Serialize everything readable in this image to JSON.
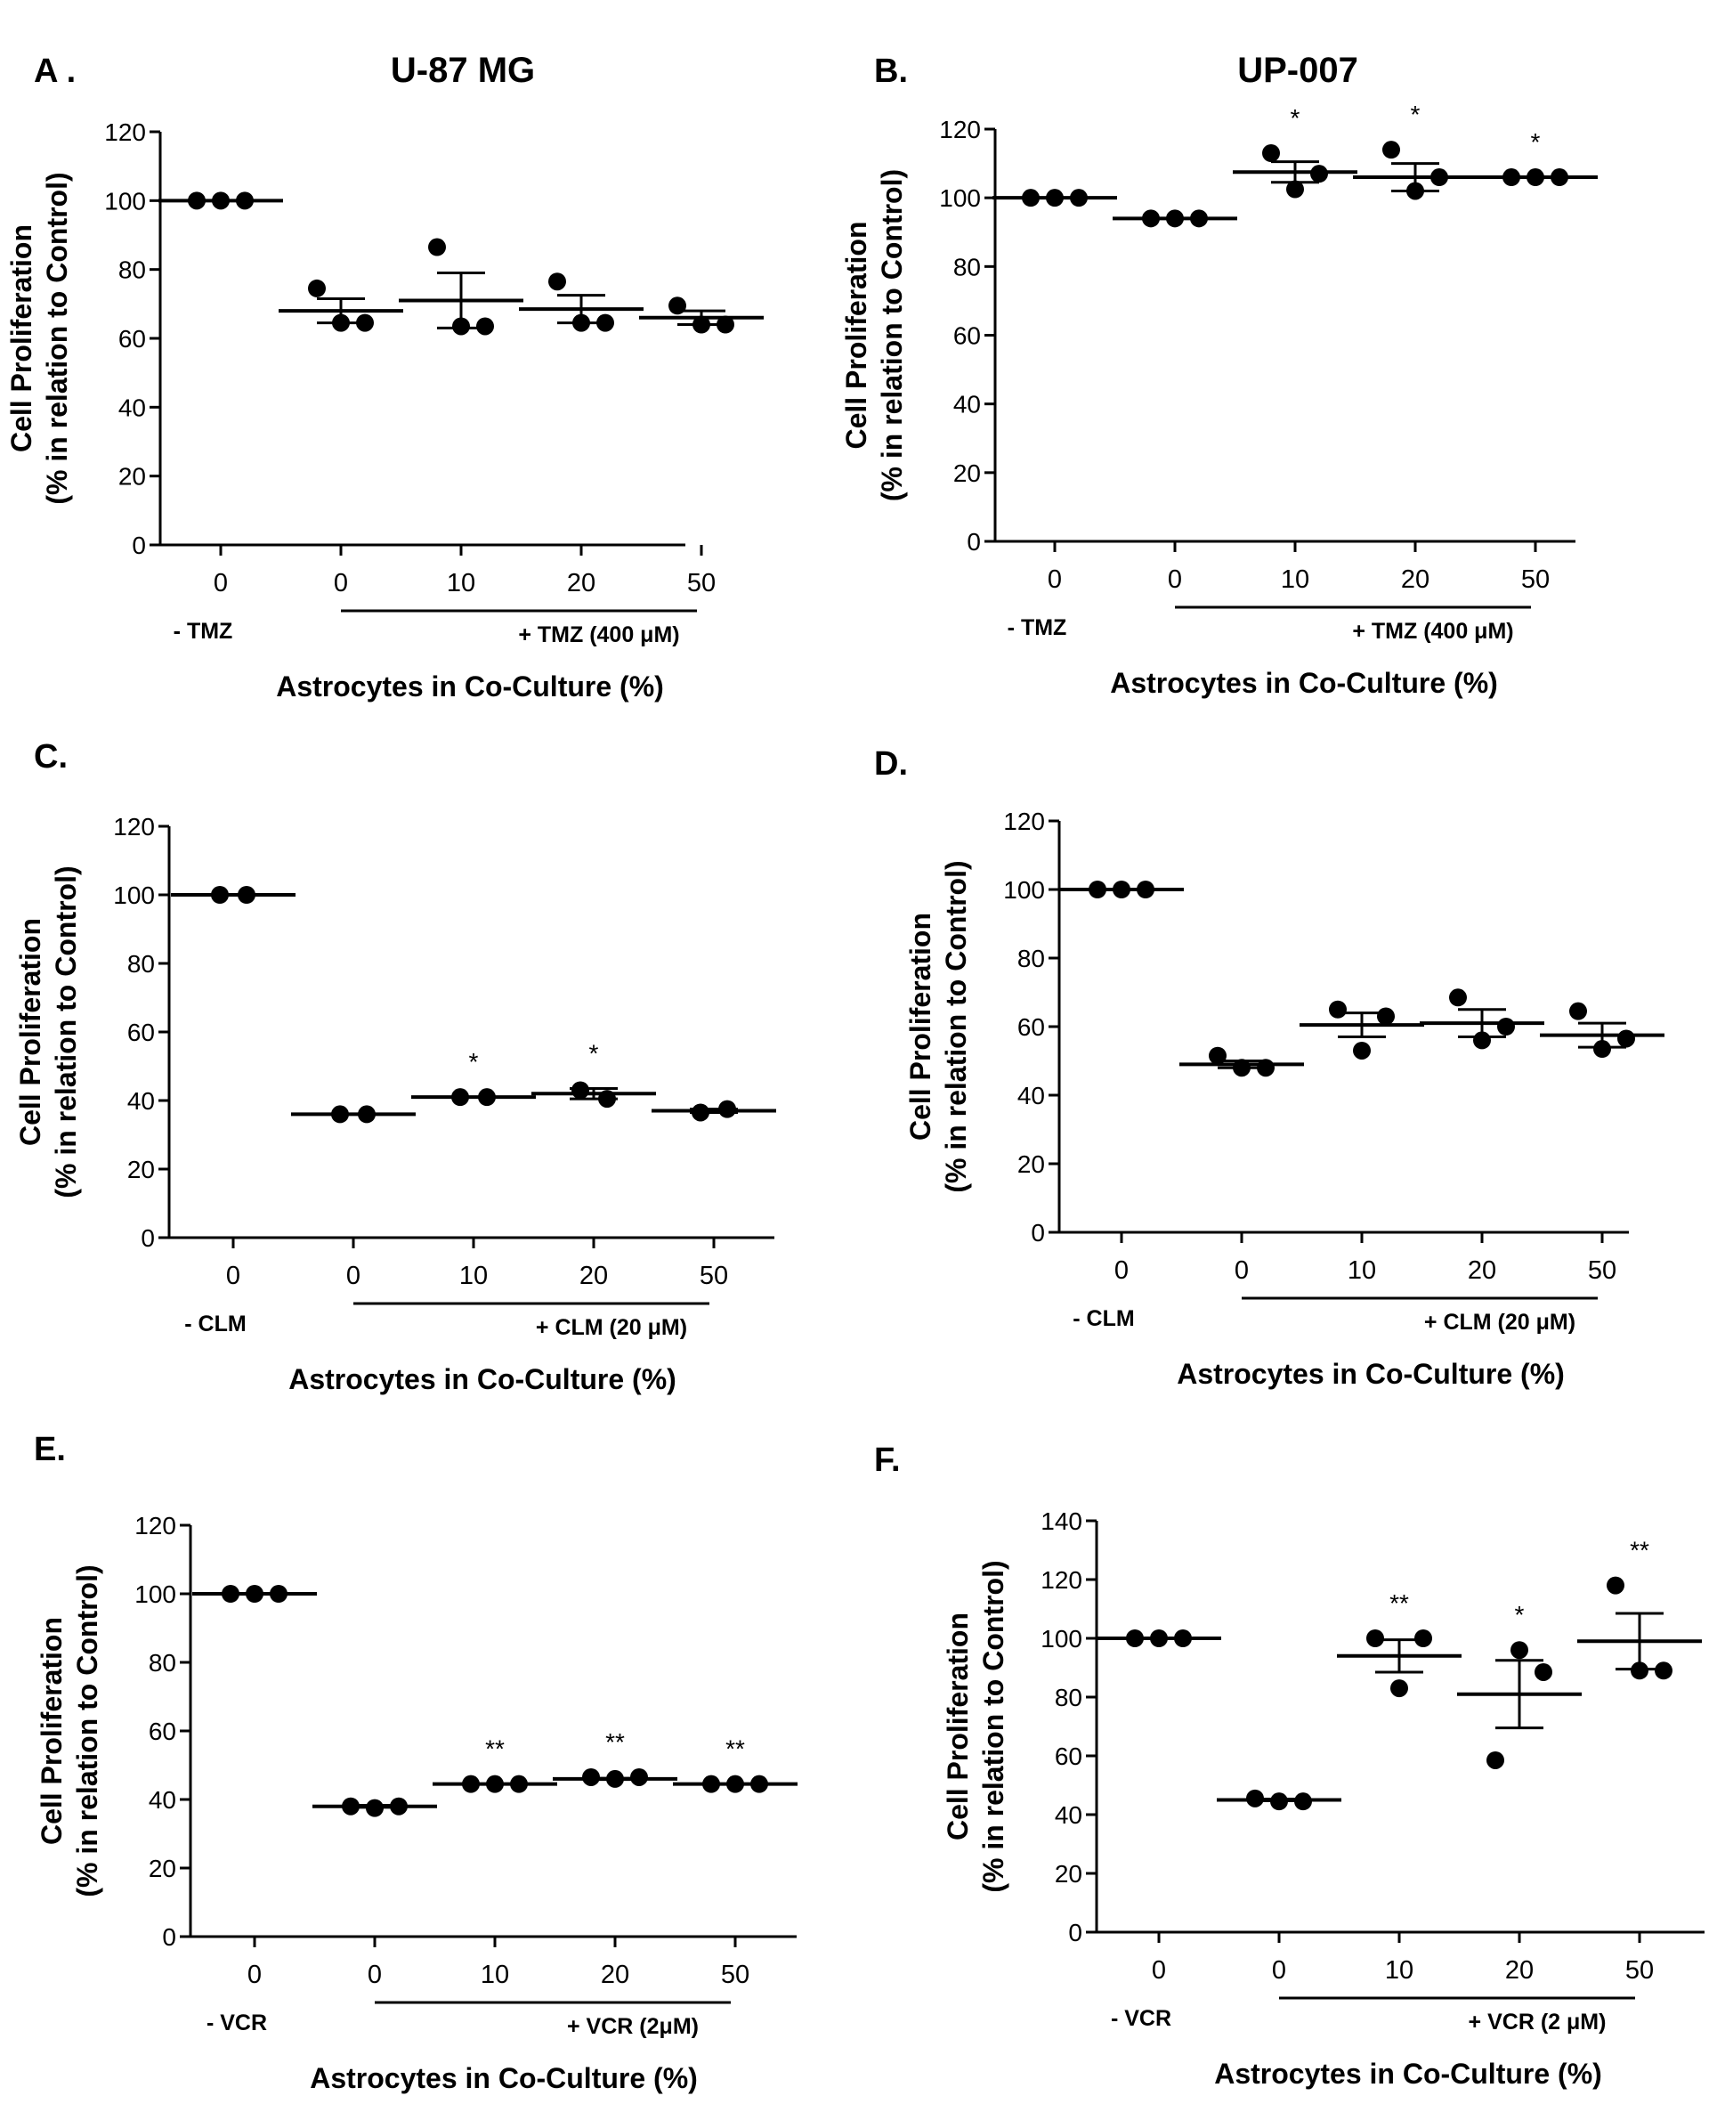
{
  "chart_data": [
    {
      "panel": "A .",
      "title": "U-87 MG",
      "type": "scatter",
      "ylabel_line1": "Cell Proliferation",
      "ylabel_line2": "(% in relation to Control)",
      "xlabel": "Astrocytes in Co-Culture (%)",
      "ylim": [
        0,
        120
      ],
      "yticks": [
        0,
        20,
        40,
        60,
        80,
        100,
        120
      ],
      "categories": [
        "0",
        "0",
        "10",
        "20",
        "50"
      ],
      "control_label": "- TMZ",
      "treatment_label": "+ TMZ (400 μM)",
      "groups": [
        {
          "points": [
            100,
            100,
            100
          ],
          "mean": 100,
          "sem": 0,
          "sig": ""
        },
        {
          "points": [
            74.5,
            64.5,
            64.5
          ],
          "mean": 68,
          "sem": 3.5,
          "sig": ""
        },
        {
          "points": [
            86.5,
            63.5,
            63.5
          ],
          "mean": 71,
          "sem": 8,
          "sig": ""
        },
        {
          "points": [
            76.5,
            64.5,
            64.5
          ],
          "mean": 68.5,
          "sem": 4,
          "sig": ""
        },
        {
          "points": [
            69.5,
            64,
            64
          ],
          "mean": 66,
          "sem": 2,
          "sig": ""
        }
      ]
    },
    {
      "panel": "B.",
      "title": "UP-007",
      "type": "scatter",
      "ylabel_line1": "Cell Proliferation",
      "ylabel_line2": "(% in relation to Control)",
      "xlabel": "Astrocytes in Co-Culture (%)",
      "ylim": [
        0,
        120
      ],
      "yticks": [
        0,
        20,
        40,
        60,
        80,
        100,
        120
      ],
      "categories": [
        "0",
        "0",
        "10",
        "20",
        "50"
      ],
      "control_label": "- TMZ",
      "treatment_label": "+ TMZ (400 μM)",
      "groups": [
        {
          "points": [
            100,
            100,
            100
          ],
          "mean": 100,
          "sem": 0,
          "sig": ""
        },
        {
          "points": [
            94,
            94,
            94
          ],
          "mean": 94,
          "sem": 0,
          "sig": ""
        },
        {
          "points": [
            113,
            102.5,
            107
          ],
          "mean": 107.5,
          "sem": 3,
          "sig": "*"
        },
        {
          "points": [
            114,
            102,
            106
          ],
          "mean": 106,
          "sem": 4,
          "sig": "*"
        },
        {
          "points": [
            106,
            106,
            106
          ],
          "mean": 106,
          "sem": 0,
          "sig": "*"
        }
      ]
    },
    {
      "panel": "C.",
      "title": "",
      "type": "scatter",
      "ylabel_line1": "Cell Proliferation",
      "ylabel_line2": "(% in relation to Control)",
      "xlabel": "Astrocytes in Co-Culture (%)",
      "ylim": [
        0,
        120
      ],
      "yticks": [
        0,
        20,
        40,
        60,
        80,
        100,
        120
      ],
      "categories": [
        "0",
        "0",
        "10",
        "20",
        "50"
      ],
      "control_label": "- CLM",
      "treatment_label": "+ CLM  (20 μM)",
      "groups": [
        {
          "points": [
            100,
            100
          ],
          "mean": 100,
          "sem": 0,
          "sig": ""
        },
        {
          "points": [
            36,
            36
          ],
          "mean": 36,
          "sem": 0,
          "sig": ""
        },
        {
          "points": [
            41,
            41
          ],
          "mean": 41,
          "sem": 0,
          "sig": "*"
        },
        {
          "points": [
            43,
            40.5
          ],
          "mean": 42,
          "sem": 1.5,
          "sig": "*"
        },
        {
          "points": [
            36.5,
            37.5
          ],
          "mean": 37,
          "sem": 0.5,
          "sig": ""
        }
      ]
    },
    {
      "panel": "D.",
      "title": "",
      "type": "scatter",
      "ylabel_line1": "Cell Proliferation",
      "ylabel_line2": "(% in relation to Control)",
      "xlabel": "Astrocytes in Co-Culture (%)",
      "ylim": [
        0,
        120
      ],
      "yticks": [
        0,
        20,
        40,
        60,
        80,
        100,
        120
      ],
      "categories": [
        "0",
        "0",
        "10",
        "20",
        "50"
      ],
      "control_label": "- CLM",
      "treatment_label": "+ CLM (20 μM)",
      "groups": [
        {
          "points": [
            100,
            100,
            100
          ],
          "mean": 100,
          "sem": 0,
          "sig": ""
        },
        {
          "points": [
            51.5,
            48,
            48
          ],
          "mean": 49,
          "sem": 1,
          "sig": ""
        },
        {
          "points": [
            65,
            53,
            63
          ],
          "mean": 60.5,
          "sem": 3.5,
          "sig": ""
        },
        {
          "points": [
            68.5,
            56,
            60
          ],
          "mean": 61,
          "sem": 4,
          "sig": ""
        },
        {
          "points": [
            64.5,
            53.5,
            56.5
          ],
          "mean": 57.5,
          "sem": 3.5,
          "sig": ""
        }
      ]
    },
    {
      "panel": "E.",
      "title": "",
      "type": "scatter",
      "ylabel_line1": "Cell Proliferation",
      "ylabel_line2": "(% in relation to Control)",
      "xlabel": "Astrocytes in Co-Culture (%)",
      "ylim": [
        0,
        120
      ],
      "yticks": [
        0,
        20,
        40,
        60,
        80,
        100,
        120
      ],
      "categories": [
        "0",
        "0",
        "10",
        "20",
        "50"
      ],
      "control_label": "- VCR",
      "treatment_label": "+ VCR (2μM)",
      "groups": [
        {
          "points": [
            100,
            100,
            100
          ],
          "mean": 100,
          "sem": 0,
          "sig": ""
        },
        {
          "points": [
            38,
            37.5,
            38
          ],
          "mean": 38,
          "sem": 0.3,
          "sig": ""
        },
        {
          "points": [
            44.5,
            44.5,
            44.5
          ],
          "mean": 44.5,
          "sem": 0,
          "sig": "**"
        },
        {
          "points": [
            46.5,
            46,
            46.5
          ],
          "mean": 46,
          "sem": 0.2,
          "sig": "**"
        },
        {
          "points": [
            44.5,
            44.5,
            44.5
          ],
          "mean": 44.5,
          "sem": 0,
          "sig": "**"
        }
      ]
    },
    {
      "panel": "F.",
      "title": "",
      "type": "scatter",
      "ylabel_line1": "Cell Proliferation",
      "ylabel_line2": "(% in relation to Control)",
      "xlabel": "Astrocytes in Co-Culture (%)",
      "ylim": [
        0,
        140
      ],
      "yticks": [
        0,
        20,
        40,
        60,
        80,
        100,
        120,
        140
      ],
      "categories": [
        "0",
        "0",
        "10",
        "20",
        "50"
      ],
      "control_label": "- VCR",
      "treatment_label": "+ VCR (2 μM)",
      "groups": [
        {
          "points": [
            100,
            100,
            100
          ],
          "mean": 100,
          "sem": 0,
          "sig": ""
        },
        {
          "points": [
            45.5,
            44.5,
            44.5
          ],
          "mean": 45,
          "sem": 0.3,
          "sig": ""
        },
        {
          "points": [
            100,
            83,
            100
          ],
          "mean": 94,
          "sem": 5.5,
          "sig": "**"
        },
        {
          "points": [
            58.5,
            96,
            88.5
          ],
          "mean": 81,
          "sem": 11.5,
          "sig": "*"
        },
        {
          "points": [
            118,
            89,
            89
          ],
          "mean": 99,
          "sem": 9.5,
          "sig": "**"
        }
      ]
    }
  ]
}
